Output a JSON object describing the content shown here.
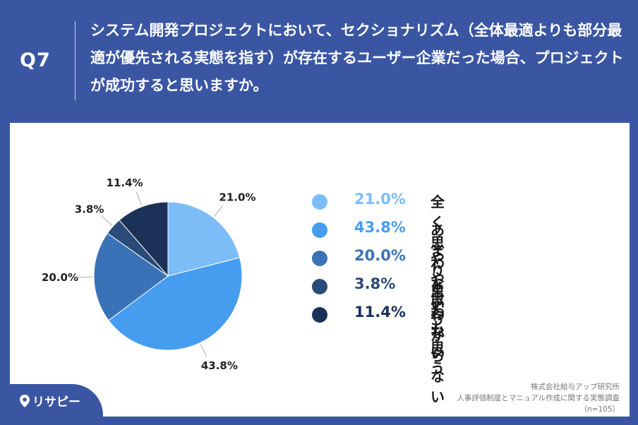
{
  "question": {
    "number": "Q7",
    "text": "システム開発プロジェクトにおいて、セクショナリズム（全体最適よりも部分最適が優先される実態を指す）が存在するユーザー企業だった場合、プロジェクトが成功すると思いますか。"
  },
  "colors": {
    "background": "#3a56a3",
    "card": "#ffffff"
  },
  "chart_data": {
    "type": "pie",
    "categories": [
      "全く思わない",
      "あまり思わない",
      "やや思う",
      "とても思う",
      "わからない"
    ],
    "values": [
      21.0,
      43.8,
      20.0,
      3.8,
      11.4
    ],
    "value_labels": [
      "21.0%",
      "43.8%",
      "20.0%",
      "3.8%",
      "11.4%"
    ],
    "colors": [
      "#7dbdf7",
      "#469df0",
      "#3a72b7",
      "#2a4a78",
      "#1c3158"
    ],
    "start": "12 o'clock, clockwise",
    "legend_position": "right"
  },
  "source": {
    "company": "株式会社給与アップ研究所",
    "survey": "人事評価制度とマニュアル作成に関する実態調査",
    "n": "（n=105）"
  },
  "brand": {
    "name": "リサピー",
    "icon": "map-pin-icon"
  }
}
